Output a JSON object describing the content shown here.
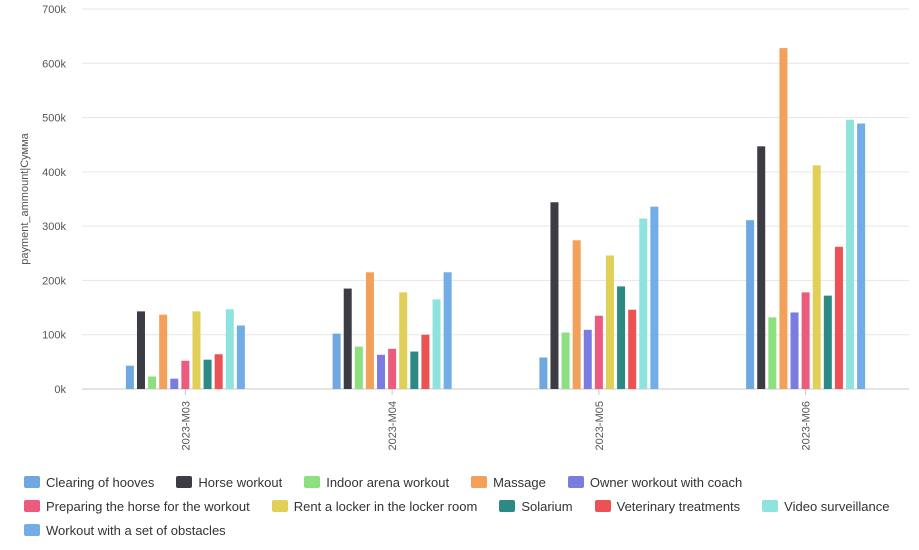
{
  "chart_data": {
    "type": "bar",
    "title": "",
    "xlabel": "",
    "ylabel": "payment_ammount|Сумма",
    "ylim": [
      0,
      700000
    ],
    "y_ticks": [
      "0k",
      "100k",
      "200k",
      "300k",
      "400k",
      "500k",
      "600k",
      "700k"
    ],
    "categories": [
      "2023-M03",
      "2023-M04",
      "2023-M05",
      "2023-M06"
    ],
    "grid": true,
    "legend_placement": "bottom",
    "series": [
      {
        "name": "Clearing of hooves",
        "color": "#6fa8e0",
        "values": [
          43000,
          102000,
          58000,
          311000
        ]
      },
      {
        "name": "Horse workout",
        "color": "#3c3c44",
        "values": [
          143000,
          185000,
          344000,
          447000
        ]
      },
      {
        "name": "Indoor arena workout",
        "color": "#8ce080",
        "values": [
          23000,
          78000,
          104000,
          132000
        ]
      },
      {
        "name": "Massage",
        "color": "#f3a05a",
        "values": [
          137000,
          215000,
          274000,
          628000
        ]
      },
      {
        "name": "Owner workout with coach",
        "color": "#7b7ce0",
        "values": [
          19000,
          63000,
          109000,
          141000
        ]
      },
      {
        "name": "Preparing the horse for the workout",
        "color": "#ec5a7e",
        "values": [
          52000,
          74000,
          135000,
          178000
        ]
      },
      {
        "name": "Rent a locker in the locker room",
        "color": "#e1d057",
        "values": [
          143000,
          178000,
          246000,
          412000
        ]
      },
      {
        "name": "Solarium",
        "color": "#2b8a84",
        "values": [
          54000,
          69000,
          189000,
          172000
        ]
      },
      {
        "name": "Veterinary treatments",
        "color": "#ec5254",
        "values": [
          64000,
          100000,
          146000,
          262000
        ]
      },
      {
        "name": "Video surveillance",
        "color": "#8fe3df",
        "values": [
          147000,
          165000,
          314000,
          496000
        ]
      },
      {
        "name": "Workout with a set of obstacles",
        "color": "#72ade8",
        "values": [
          117000,
          215000,
          336000,
          489000
        ]
      }
    ]
  }
}
